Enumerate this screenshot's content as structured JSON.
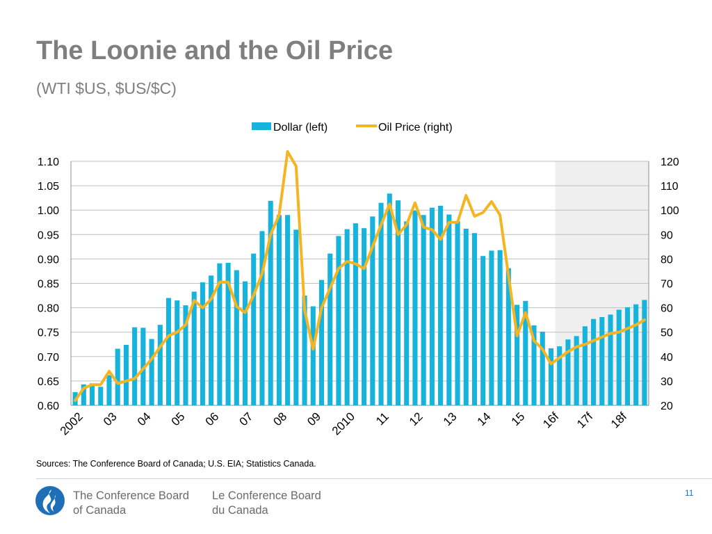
{
  "header": {
    "title": "The Loonie and the Oil Price",
    "subtitle": "(WTI $US, $US/$C)"
  },
  "footer": {
    "sources": "Sources: The Conference Board of Canada; U.S. EIA; Statistics Canada.",
    "org_en_line1": "The Conference Board",
    "org_en_line2": "of Canada",
    "org_fr_line1": "Le Conference Board",
    "org_fr_line2": "du Canada",
    "page_number": "11"
  },
  "colors": {
    "bars": "#16b4dc",
    "line": "#f5b523",
    "forecast_shade": "#efefef",
    "grid": "#bfbfbf",
    "logo": "#1e6fb8"
  },
  "icons": {
    "logo": "conference-board-flame-logo-icon"
  },
  "chart_data": {
    "type": "bar+line",
    "legend": [
      "Dollar (left)",
      "Oil Price (right)"
    ],
    "legend_position": "top-center",
    "y_left": {
      "min": 0.6,
      "max": 1.1,
      "ticks": [
        "1.10",
        "1.05",
        "1.00",
        "0.95",
        "0.90",
        "0.85",
        "0.80",
        "0.75",
        "0.70",
        "0.65",
        "0.60"
      ]
    },
    "y_right": {
      "min": 20,
      "max": 120,
      "ticks": [
        "120",
        "110",
        "100",
        "90",
        "80",
        "70",
        "60",
        "50",
        "40",
        "30",
        "20"
      ]
    },
    "x_tick_labels": [
      {
        "label": "2002",
        "index": 0
      },
      {
        "label": "03",
        "index": 4
      },
      {
        "label": "04",
        "index": 8
      },
      {
        "label": "05",
        "index": 12
      },
      {
        "label": "06",
        "index": 16
      },
      {
        "label": "07",
        "index": 20
      },
      {
        "label": "08",
        "index": 24
      },
      {
        "label": "09",
        "index": 28
      },
      {
        "label": "2010",
        "index": 32
      },
      {
        "label": "11",
        "index": 36
      },
      {
        "label": "12",
        "index": 40
      },
      {
        "label": "13",
        "index": 44
      },
      {
        "label": "14",
        "index": 48
      },
      {
        "label": "15",
        "index": 52
      },
      {
        "label": "16f",
        "index": 56
      },
      {
        "label": "17f",
        "index": 60
      },
      {
        "label": "18f",
        "index": 64
      }
    ],
    "forecast_start_index": 57,
    "grid": "horizontal",
    "series": [
      {
        "name": "Dollar (left)",
        "type": "bar",
        "axis": "left",
        "values": [
          0.627,
          0.643,
          0.645,
          0.638,
          0.662,
          0.716,
          0.724,
          0.76,
          0.759,
          0.736,
          0.765,
          0.82,
          0.815,
          0.805,
          0.833,
          0.852,
          0.866,
          0.891,
          0.892,
          0.877,
          0.854,
          0.911,
          0.957,
          1.019,
          0.99,
          0.99,
          0.96,
          0.825,
          0.803,
          0.857,
          0.911,
          0.947,
          0.961,
          0.973,
          0.963,
          0.987,
          1.015,
          1.034,
          1.02,
          0.977,
          0.999,
          0.99,
          1.005,
          1.009,
          0.991,
          0.977,
          0.962,
          0.953,
          0.906,
          0.917,
          0.918,
          0.881,
          0.806,
          0.814,
          0.764,
          0.751,
          0.717,
          0.721,
          0.735,
          0.742,
          0.762,
          0.777,
          0.781,
          0.786,
          0.796,
          0.801,
          0.807,
          0.816
        ]
      },
      {
        "name": "Oil Price (right)",
        "type": "line",
        "axis": "right",
        "values": [
          22,
          27,
          28.5,
          28.5,
          34,
          29,
          30,
          31,
          35,
          39,
          44,
          48.5,
          50,
          53,
          63,
          60,
          63.5,
          70.5,
          70.5,
          60.5,
          58,
          65,
          74,
          90,
          98,
          124,
          118,
          59,
          43,
          60,
          68,
          76,
          79,
          78,
          76,
          85,
          94,
          102.5,
          90,
          94,
          103,
          93,
          92,
          88,
          95,
          95,
          106,
          97.5,
          99,
          103.5,
          98,
          73,
          48.5,
          58,
          46.5,
          43,
          37,
          39.5,
          42,
          44,
          45,
          46.5,
          48,
          49.5,
          50,
          51.5,
          53,
          55
        ]
      }
    ]
  }
}
